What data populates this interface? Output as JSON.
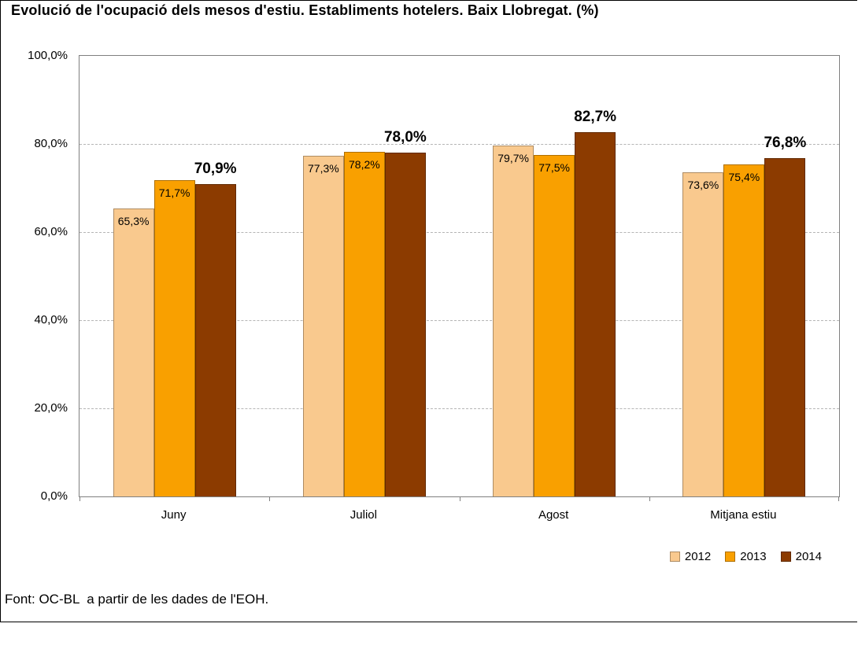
{
  "title": "Evolució de l'ocupació dels mesos d'estiu. Establiments hotelers. Baix Llobregat. (%)",
  "footer": {
    "source": "Font: OC-BL  a partir de les dades de l'EOH."
  },
  "chart_data": {
    "type": "bar",
    "title": "Evolució de l'ocupació dels mesos d'estiu. Establiments hotelers. Baix Llobregat. (%)",
    "categories": [
      "Juny",
      "Juliol",
      "Agost",
      "Mitjana estiu"
    ],
    "series": [
      {
        "name": "2012",
        "color": "#F9C98E",
        "values": [
          65.3,
          77.3,
          79.7,
          73.6
        ],
        "labels": [
          "65,3%",
          "77,3%",
          "79,7%",
          "73,6%"
        ],
        "label_style": "inside"
      },
      {
        "name": "2013",
        "color": "#F9A000",
        "values": [
          71.7,
          78.2,
          77.5,
          75.4
        ],
        "labels": [
          "71,7%",
          "78,2%",
          "77,5%",
          "75,4%"
        ],
        "label_style": "inside"
      },
      {
        "name": "2014",
        "color": "#8C3B00",
        "values": [
          70.9,
          78.0,
          82.7,
          76.8
        ],
        "labels": [
          "70,9%",
          "78,0%",
          "82,7%",
          "76,8%"
        ],
        "label_style": "outside-bold"
      }
    ],
    "xlabel": "",
    "ylabel": "",
    "ylim": [
      0,
      100
    ],
    "yticks": [
      {
        "value": 0,
        "label": "0,0%"
      },
      {
        "value": 20,
        "label": "20,0%"
      },
      {
        "value": 40,
        "label": "40,0%"
      },
      {
        "value": 60,
        "label": "60,0%"
      },
      {
        "value": 80,
        "label": "80,0%"
      },
      {
        "value": 100,
        "label": "100,0%"
      }
    ],
    "grid": "horizontal-dashed",
    "legend_position": "bottom-right"
  }
}
